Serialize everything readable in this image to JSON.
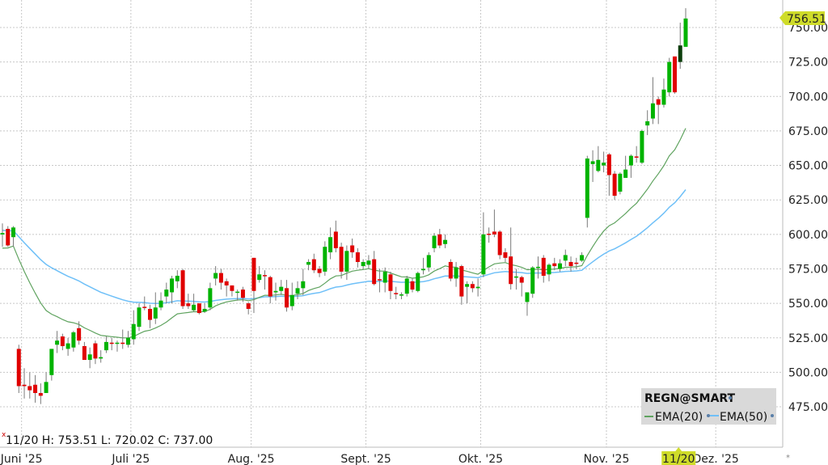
{
  "chart_data": {
    "type": "candlestick",
    "symbol_label": "REGN@SMART",
    "ylim": [
      450,
      765
    ],
    "yticks": [
      "475.00",
      "500.00",
      "525.00",
      "550.00",
      "575.00",
      "600.00",
      "625.00",
      "650.00",
      "675.00",
      "700.00",
      "725.00",
      "750.00"
    ],
    "xticks": [
      {
        "label": "Juni '25",
        "bar": 4
      },
      {
        "label": "Juli '25",
        "bar": 24
      },
      {
        "label": "Aug. '25",
        "bar": 46
      },
      {
        "label": "Sept. '25",
        "bar": 67
      },
      {
        "label": "Okt. '25",
        "bar": 88
      },
      {
        "label": "Nov. '25",
        "bar": 111
      },
      {
        "label": "Dez. '25",
        "bar": 131
      }
    ],
    "grid": true,
    "legend_placement": "bottom-right",
    "legend": [
      {
        "name": "EMA(20)",
        "color": "#5fa35f"
      },
      {
        "name": "EMA(50)",
        "color": "#6fc0f8"
      }
    ],
    "last_price_label": "756.51",
    "crosshair_date_label": "11/20",
    "crosshair_bar": 124,
    "info_text": "11/20 H: 753.51 L: 720.02 C: 737.00",
    "colors": {
      "up": "#00b300",
      "down": "#e00000",
      "selected": "#0b3d0b",
      "wick": "#7a7a7a",
      "price_tag": "#cfdc2a"
    },
    "ohlc": [
      [
        600,
        608,
        591,
        601
      ],
      [
        604,
        606,
        591,
        592
      ],
      [
        598,
        606,
        591,
        605
      ],
      [
        517,
        520,
        485,
        490
      ],
      [
        491,
        503,
        481,
        490
      ],
      [
        490,
        500,
        481,
        487
      ],
      [
        491,
        498,
        478,
        485
      ],
      [
        485,
        492,
        477,
        483
      ],
      [
        485,
        500,
        485,
        493
      ],
      [
        498,
        517,
        494,
        517
      ],
      [
        520,
        530,
        514,
        523
      ],
      [
        526,
        528,
        516,
        519
      ],
      [
        517,
        525,
        512,
        521
      ],
      [
        518,
        530,
        515,
        529
      ],
      [
        532,
        537,
        520,
        523
      ],
      [
        519,
        522,
        510,
        509
      ],
      [
        509,
        518,
        503,
        513
      ],
      [
        521,
        523,
        506,
        510
      ],
      [
        510,
        516,
        507,
        511
      ],
      [
        516,
        526,
        514,
        522
      ],
      [
        521.5,
        525,
        516,
        521
      ],
      [
        521,
        523,
        515,
        521.5
      ],
      [
        521.5,
        531,
        517,
        521
      ],
      [
        520,
        530,
        518,
        525
      ],
      [
        524,
        545,
        520,
        535
      ],
      [
        533,
        550,
        530,
        547
      ],
      [
        547.5,
        555,
        545,
        547
      ],
      [
        546,
        549,
        532,
        538
      ],
      [
        539,
        558,
        535,
        547
      ],
      [
        547,
        558,
        545,
        552
      ],
      [
        555,
        565,
        550,
        560
      ],
      [
        558,
        570,
        550,
        568
      ],
      [
        566,
        574,
        561,
        570
      ],
      [
        574,
        575,
        546,
        548
      ],
      [
        550,
        557,
        546,
        548
      ],
      [
        545,
        557,
        544,
        549
      ],
      [
        550,
        550,
        542,
        543
      ],
      [
        544,
        550,
        543,
        546
      ],
      [
        547,
        565,
        545,
        561
      ],
      [
        568,
        577,
        563,
        572
      ],
      [
        572,
        575,
        560,
        565
      ],
      [
        566,
        568,
        555,
        563
      ],
      [
        563,
        563,
        555,
        559
      ],
      [
        558,
        560,
        552,
        558.5
      ],
      [
        560,
        562,
        551,
        554
      ],
      [
        550,
        551,
        542,
        546
      ],
      [
        583,
        583,
        543,
        559
      ],
      [
        567,
        577,
        565,
        571
      ],
      [
        570.5,
        574,
        560,
        570
      ],
      [
        569,
        570,
        550,
        555
      ],
      [
        558,
        565,
        552,
        559
      ],
      [
        559,
        567,
        556,
        562
      ],
      [
        561,
        567,
        544,
        547
      ],
      [
        548,
        565,
        545,
        556
      ],
      [
        557,
        566,
        553,
        561
      ],
      [
        561,
        575,
        556,
        566
      ],
      [
        578,
        582,
        574,
        580
      ],
      [
        582,
        586,
        572,
        574
      ],
      [
        575,
        577,
        569,
        572
      ],
      [
        573,
        595,
        570,
        591
      ],
      [
        587,
        605,
        582,
        598
      ],
      [
        602,
        610,
        587,
        590
      ],
      [
        591,
        594,
        568,
        573
      ],
      [
        573,
        592,
        567,
        588
      ],
      [
        592,
        597,
        583,
        587
      ],
      [
        587,
        590,
        576,
        580
      ],
      [
        577,
        582,
        575,
        580
      ],
      [
        578,
        585,
        575,
        581
      ],
      [
        582,
        588,
        563,
        564
      ],
      [
        567.5,
        575,
        558,
        567
      ],
      [
        565,
        576,
        558,
        573
      ],
      [
        571,
        573,
        553,
        559
      ],
      [
        557.5,
        562,
        553,
        557
      ],
      [
        556,
        558,
        553,
        556.5
      ],
      [
        557,
        570,
        555,
        568
      ],
      [
        566,
        568,
        558,
        560
      ],
      [
        559,
        573,
        558,
        572
      ],
      [
        574,
        583,
        571,
        575
      ],
      [
        576,
        587,
        573,
        585
      ],
      [
        590,
        601,
        587,
        599
      ],
      [
        600,
        604,
        590,
        592
      ],
      [
        593,
        600,
        590,
        596
      ],
      [
        580,
        582,
        566,
        568
      ],
      [
        568,
        580,
        562,
        576
      ],
      [
        577,
        578,
        549,
        555
      ],
      [
        562,
        566,
        550,
        564
      ],
      [
        564,
        566,
        558,
        561
      ],
      [
        561,
        568,
        555,
        562
      ],
      [
        571,
        616,
        569,
        600
      ],
      [
        600.5,
        605,
        594,
        600
      ],
      [
        602,
        618,
        598,
        600
      ],
      [
        602,
        603,
        582,
        585
      ],
      [
        587,
        590,
        580,
        583
      ],
      [
        584,
        605,
        560,
        564
      ],
      [
        569,
        575,
        560,
        569.5
      ],
      [
        569,
        570,
        555,
        565
      ],
      [
        551,
        558,
        541,
        558
      ],
      [
        557,
        577,
        554,
        576
      ],
      [
        576,
        584,
        568,
        576.5
      ],
      [
        583,
        585,
        565,
        570
      ],
      [
        571,
        579,
        566,
        578
      ],
      [
        579,
        583,
        574,
        577
      ],
      [
        575,
        582,
        573,
        579
      ],
      [
        581,
        589,
        577,
        585
      ],
      [
        580,
        584,
        573,
        577
      ],
      [
        579.5,
        583,
        575,
        579
      ],
      [
        581,
        587,
        580,
        585
      ],
      [
        612,
        657,
        605,
        655
      ],
      [
        651,
        661,
        638,
        653
      ],
      [
        646,
        664,
        645,
        654
      ],
      [
        650,
        660,
        645,
        652
      ],
      [
        658,
        659,
        628,
        643
      ],
      [
        644,
        646,
        625,
        628
      ],
      [
        631,
        645,
        629,
        644
      ],
      [
        641,
        657,
        641,
        647
      ],
      [
        650,
        658,
        641,
        657
      ],
      [
        656.5,
        664,
        652,
        656
      ],
      [
        652,
        676,
        651,
        675
      ],
      [
        679,
        690,
        672,
        682
      ],
      [
        684,
        714,
        680,
        695
      ],
      [
        698,
        700,
        680,
        694
      ],
      [
        694,
        713,
        692,
        705
      ],
      [
        703,
        728,
        700,
        725
      ],
      [
        729,
        729,
        702,
        703
      ],
      [
        725,
        753.51,
        720.02,
        737
      ],
      [
        736,
        764,
        736,
        756.51
      ]
    ]
  }
}
